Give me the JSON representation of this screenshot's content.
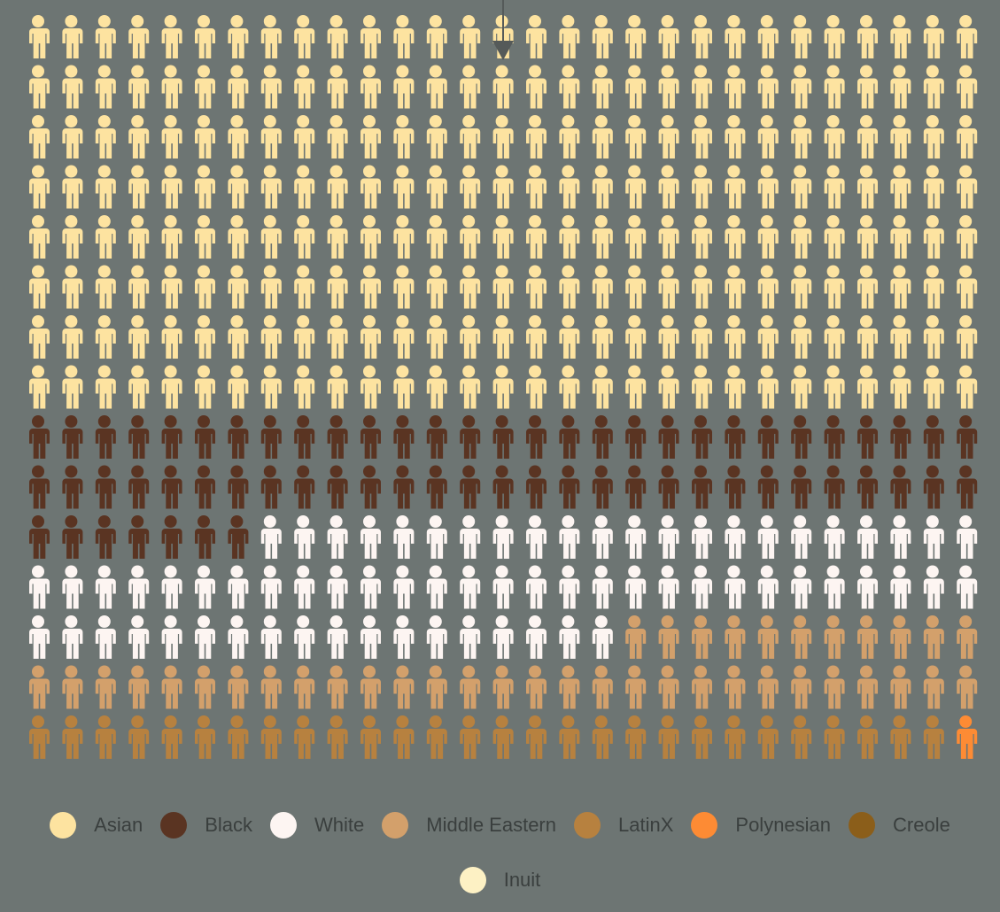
{
  "chart_data": {
    "type": "waffle",
    "unit_icon": "person-icon",
    "columns": 29,
    "rows": 15,
    "categories": [
      "Asian",
      "Black",
      "White",
      "Middle Eastern",
      "LatinX",
      "Polynesian",
      "Creole",
      "Inuit"
    ],
    "values": [
      232,
      65,
      69,
      40,
      28,
      1,
      0,
      0
    ],
    "colors": [
      "#fde3a0",
      "#5a3422",
      "#fdf5f2",
      "#d3a06b",
      "#b7813f",
      "#fd8b34",
      "#8b5e1a",
      "#fdf1c4"
    ],
    "legend_position": "bottom"
  }
}
